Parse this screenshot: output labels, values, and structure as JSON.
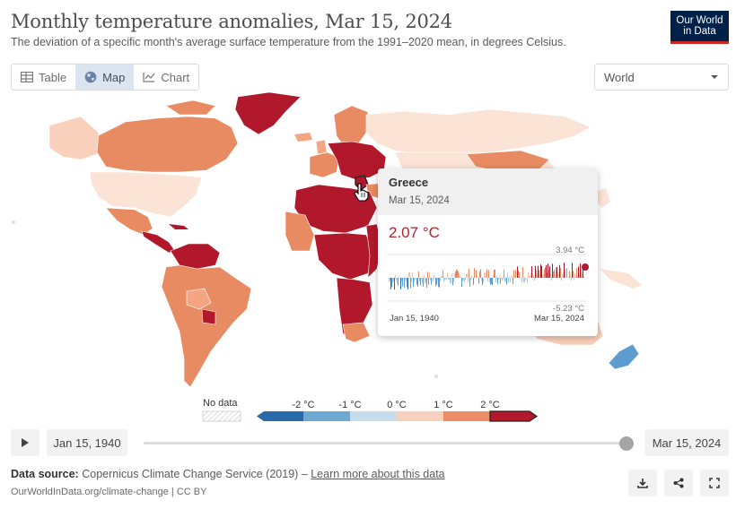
{
  "header": {
    "title": "Monthly temperature anomalies, Mar 15, 2024",
    "subtitle": "The deviation of a specific month's average surface temperature from the 1991–2020 mean, in degrees Celsius.",
    "logo_line1": "Our World",
    "logo_line2": "in Data"
  },
  "tabs": [
    {
      "label": "Table",
      "icon": "table-icon",
      "active": false
    },
    {
      "label": "Map",
      "icon": "globe-icon",
      "active": true
    },
    {
      "label": "Chart",
      "icon": "line-chart-icon",
      "active": false
    }
  ],
  "region_select": {
    "value": "World"
  },
  "tooltip": {
    "country": "Greece",
    "date": "Mar 15, 2024",
    "value": "2.07 °C",
    "spark_max_label": "3.94 °C",
    "spark_min_label": "-5.23 °C",
    "spark_start": "Jan 15, 1940",
    "spark_end": "Mar 15, 2024"
  },
  "legend": {
    "no_data_label": "No data",
    "ticks": [
      "-2 °C",
      "-1 °C",
      "0 °C",
      "1 °C",
      "2 °C"
    ],
    "colors": [
      "#2c6bab",
      "#6fa8d1",
      "#c5dced",
      "#f9d0bb",
      "#ec8d66",
      "#b2192b"
    ]
  },
  "timeline": {
    "start": "Jan 15, 1940",
    "end": "Mar 15, 2024",
    "position": 1.0
  },
  "footer": {
    "source_label": "Data source:",
    "source_text": "Copernicus Climate Change Service (2019) –",
    "learn_more": "Learn more about this data",
    "url": "OurWorldInData.org/climate-change | CC BY"
  },
  "map_colors": {
    "ocean": "#ffffff",
    "light": "#fbe3d6",
    "mid": "#f4a582",
    "warm": "#e88a62",
    "hot": "#b2182b",
    "cool": "#5d9cd0",
    "grey": "#e8e8e8"
  }
}
